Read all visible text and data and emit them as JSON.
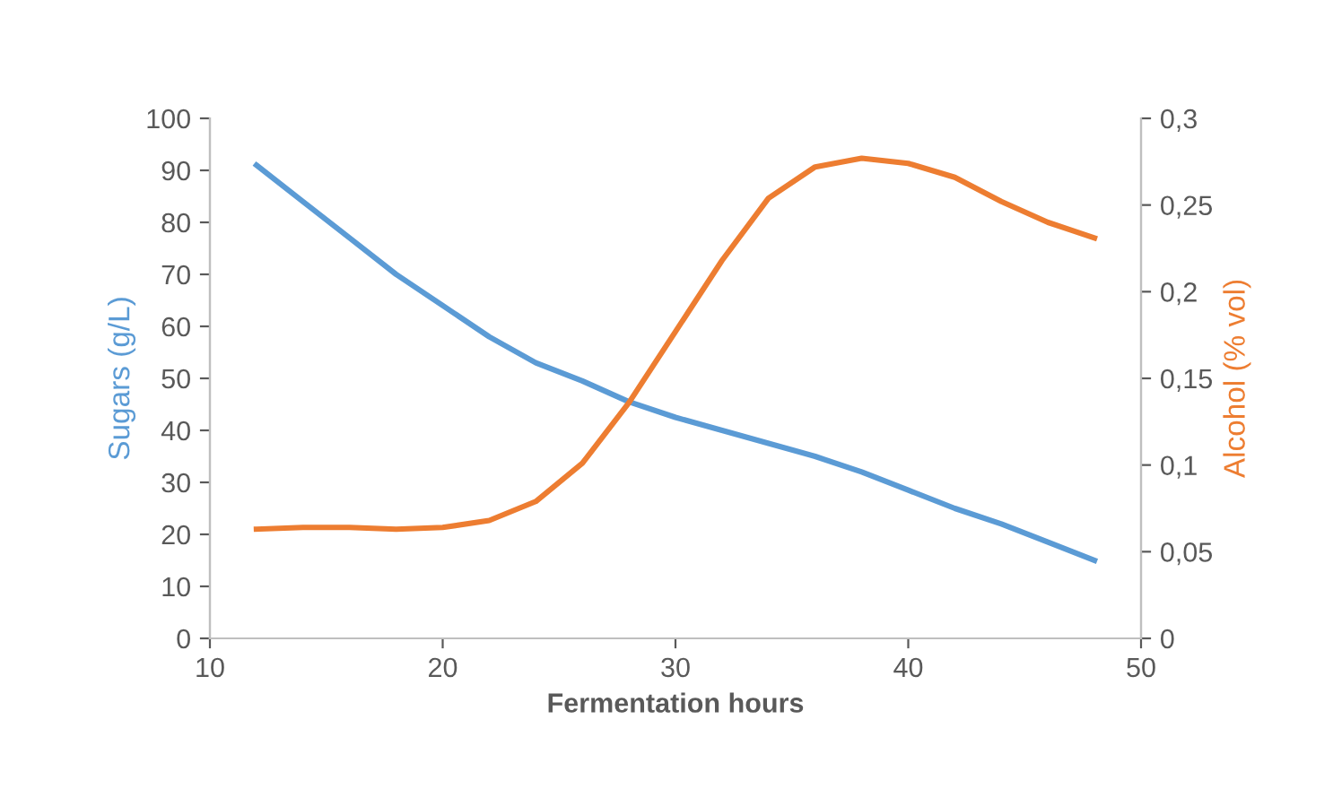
{
  "chart_data": {
    "type": "line",
    "xlabel": "Fermentation hours",
    "ylabel": "Sugars (g/L)",
    "y2label": "Alcohol (% vol)",
    "x": [
      12,
      14,
      16,
      18,
      20,
      22,
      24,
      26,
      28,
      30,
      32,
      34,
      36,
      38,
      40,
      42,
      44,
      46,
      48
    ],
    "series": [
      {
        "color": "#5b9bd5",
        "values": [
          91,
          84,
          77,
          70,
          64,
          58,
          53,
          49.5,
          45.5,
          42.5,
          40,
          37.5,
          35,
          32,
          28.5,
          25,
          22,
          18.5,
          15
        ]
      },
      {
        "color": "#ed7d31",
        "axis": "y2",
        "values": [
          0.063,
          0.064,
          0.064,
          0.063,
          0.064,
          0.068,
          0.079,
          0.101,
          0.136,
          0.177,
          0.218,
          0.254,
          0.272,
          0.277,
          0.274,
          0.266,
          0.252,
          0.24,
          0.231
        ]
      }
    ],
    "xlim": [
      10,
      50
    ],
    "xticks": [
      10,
      20,
      30,
      40,
      50
    ],
    "ylim": [
      0,
      100
    ],
    "yticks": [
      0,
      10,
      20,
      30,
      40,
      50,
      60,
      70,
      80,
      90,
      100
    ],
    "y2lim": [
      0,
      0.3
    ],
    "y2ticks": [
      0,
      {
        "value": 0.05,
        "label": "0,05"
      },
      {
        "value": 0.1,
        "label": "0,1"
      },
      {
        "value": 0.15,
        "label": "0,15"
      },
      {
        "value": 0.2,
        "label": "0,2"
      },
      {
        "value": 0.25,
        "label": "0,25"
      },
      {
        "value": 0.3,
        "label": "0,3"
      }
    ],
    "grid": false,
    "marker": "none",
    "line_style": "solid"
  }
}
